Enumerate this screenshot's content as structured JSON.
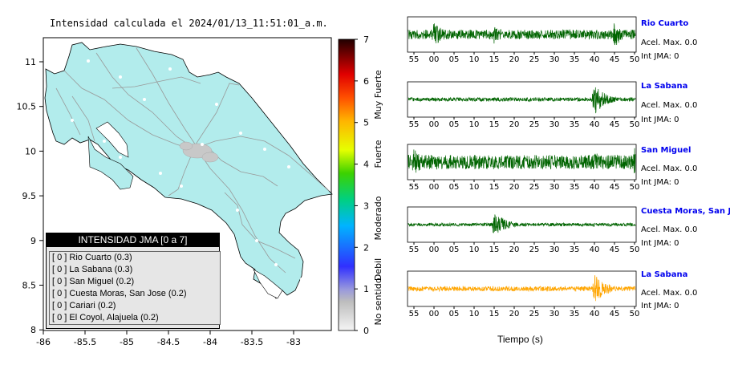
{
  "map": {
    "title": "Intensidad calculada el 2024/01/13_11:51:01_a.m.",
    "lon_ticks": [
      "-86",
      "-85.5",
      "-85",
      "-84.5",
      "-84",
      "-83.5",
      "-83"
    ],
    "lat_ticks": [
      "11",
      "10.5",
      "10",
      "9.5",
      "9",
      "8.5",
      "8"
    ],
    "colors": {
      "land": "#b2ecec",
      "roads": "#999999",
      "legend_header_bg": "#000000",
      "legend_bg": "#e6e6e6"
    }
  },
  "legend": {
    "title": "INTENSIDAD JMA [0 a 7]",
    "items": [
      {
        "bracket": "[ 0 ]",
        "label": "Rio Cuarto (0.3)"
      },
      {
        "bracket": "[ 0 ]",
        "label": "La Sabana (0.3)"
      },
      {
        "bracket": "[ 0 ]",
        "label": "San Miguel (0.2)"
      },
      {
        "bracket": "[ 0 ]",
        "label": "Cuesta Moras, San Jose (0.2)"
      },
      {
        "bracket": "[ 0 ]",
        "label": "Cariari (0.2)"
      },
      {
        "bracket": "[ 0 ]",
        "label": "El Coyol, Alajuela (0.2)"
      }
    ]
  },
  "colorbar": {
    "ticks": [
      "7",
      "6",
      "5",
      "4",
      "3",
      "2",
      "1",
      "0"
    ],
    "labels": [
      "Muy Fuerte",
      "Fuerte",
      "Moderado",
      "Debil",
      "No sentido"
    ]
  },
  "chart_data": {
    "type": "line",
    "x_tick_labels": [
      "55",
      "00",
      "05",
      "10",
      "15",
      "20",
      "25",
      "30",
      "35",
      "40",
      "45",
      "50"
    ],
    "xlabel": "Tiempo (s)",
    "traces": [
      {
        "station": "Rio Cuarto",
        "accel": "Acel. Max. 0.0",
        "jma": "Int JMA: 0",
        "color": "#006400",
        "bursts": [
          {
            "x": "00",
            "level": 0.8
          },
          {
            "x": "15",
            "level": 0.6
          },
          {
            "x": "45",
            "level": 0.8
          }
        ],
        "base_level": 0.3
      },
      {
        "station": "La Sabana",
        "accel": "Acel. Max. 0.0",
        "jma": "Int JMA: 0",
        "color": "#006400",
        "bursts": [
          {
            "x": "40",
            "level": 0.95
          }
        ],
        "base_level": 0.12
      },
      {
        "station": "San Miguel",
        "accel": "Acel. Max. 0.0",
        "jma": "Int JMA: 0",
        "color": "#006400",
        "bursts": [
          {
            "x": "55",
            "level": 0.9
          },
          {
            "x": "40",
            "level": 0.7
          },
          {
            "x": "50",
            "level": 0.9
          }
        ],
        "base_level": 0.45
      },
      {
        "station": "Cuesta Moras, San Jose",
        "accel": "Acel. Max. 0.0",
        "jma": "Int JMA: 0",
        "color": "#006400",
        "bursts": [
          {
            "x": "15",
            "level": 0.9
          }
        ],
        "base_level": 0.1
      },
      {
        "station": "La Sabana",
        "accel": "Acel. Max. 0.0",
        "jma": "Int JMA: 0",
        "color": "#ffa500",
        "bursts": [
          {
            "x": "40",
            "level": 0.95
          }
        ],
        "base_level": 0.15
      }
    ]
  }
}
